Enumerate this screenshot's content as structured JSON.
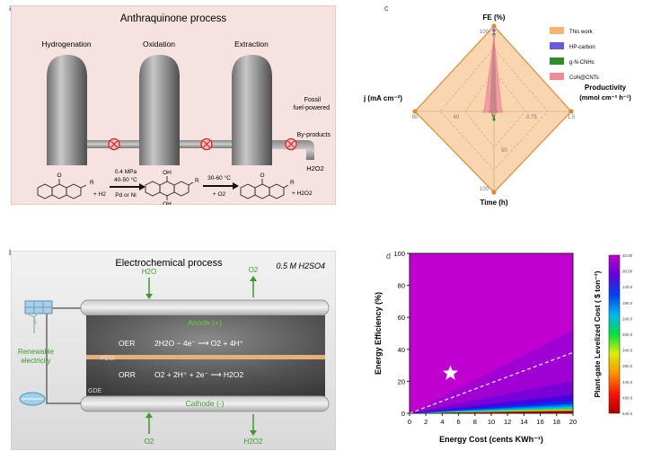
{
  "panel_a": {
    "label": "a",
    "title": "Anthraquinone process",
    "tanks": [
      "Hydrogenation",
      "Oxidation",
      "Extraction"
    ],
    "fossil_note_line1": "Fossil",
    "fossil_note_line2": "fuel-powered",
    "byproducts": "By-products",
    "product": "H2O2",
    "step1_line1": "0.4 MPa",
    "step1_line2": "40-50 °C",
    "step1_line3": "Pd or Ni",
    "step1_reagent": "+ H2",
    "step2_line1": "30-60 °C",
    "step2_line2": "+ O2",
    "step3_reagent": "+ H2O2",
    "r_group": "R",
    "oh": "OH",
    "o": "O"
  },
  "panel_b": {
    "label": "b",
    "title": "Electrochemical process",
    "electrolyte": "0.5 M H2SO4",
    "top_in": "H2O",
    "top_out": "O2",
    "anode": "Anode (+)",
    "oer_label": "OER",
    "oer_eq": "2H2O − 4e⁻ ⟶ O2 + 4H⁺",
    "pem": "PEM",
    "orr_label": "ORR",
    "orr_eq": "O2 + 2H⁺ + 2e⁻ ⟶ H2O2",
    "gde": "GDE",
    "cathode": "Cathode (-)",
    "bottom_in": "O2",
    "bottom_out": "H2O2",
    "renewable_line1": "Renewable",
    "renewable_line2": "electricity"
  },
  "panel_c": {
    "label": "c",
    "axes": {
      "top": "FE (%)",
      "left": "j (mA cm⁻²)",
      "right_line1": "Productivity",
      "right_line2": "(mmol cm⁻² h⁻¹)",
      "bottom": "Time (h)"
    },
    "ticks": {
      "top": [
        "100"
      ],
      "left": [
        "80",
        "40"
      ],
      "right": [
        "0.75",
        "1.5"
      ],
      "bottom": [
        "50",
        "100"
      ]
    },
    "legend": [
      {
        "name": "This work",
        "color": "#f5b46f"
      },
      {
        "name": "HP-carbon",
        "color": "#6a5ae0"
      },
      {
        "name": "g-N-CNHs",
        "color": "#2e8b2e"
      },
      {
        "name": "CoN@CNTs",
        "color": "#f28a96"
      }
    ]
  },
  "panel_d": {
    "label": "d",
    "xlabel": "Energy Cost (cents KWh⁻¹)",
    "ylabel": "Energy Efficiency  (%)",
    "colorbar_label": "Plant-gate Levelized Cost ( $ ton⁻¹)",
    "xticks": [
      "0",
      "2",
      "4",
      "6",
      "8",
      "10",
      "12",
      "14",
      "16",
      "18",
      "20"
    ],
    "yticks": [
      "0",
      "20",
      "40",
      "60",
      "80",
      "100"
    ],
    "colorbar_ticks": [
      "40.00",
      "90.00",
      "140.0",
      "190.0",
      "240.0",
      "290.0",
      "340.0",
      "390.0",
      "440.0",
      "490.0",
      "540.0"
    ],
    "marker": {
      "x": 5,
      "y": 25
    }
  },
  "chart_data": [
    {
      "type": "radar",
      "axes": [
        "FE (%)",
        "Productivity (mmol cm⁻² h⁻¹)",
        "Time (h)",
        "j (mA cm⁻²)"
      ],
      "axis_max": [
        100,
        1.5,
        100,
        80
      ],
      "series": [
        {
          "name": "This work",
          "values": [
            100,
            1.5,
            100,
            80
          ]
        },
        {
          "name": "HP-carbon",
          "values": [
            95,
            0.05,
            2,
            4
          ]
        },
        {
          "name": "g-N-CNHs",
          "values": [
            90,
            0.03,
            10,
            3
          ]
        },
        {
          "name": "CoN@CNTs",
          "values": [
            88,
            0.15,
            3,
            10
          ]
        }
      ]
    },
    {
      "type": "heatmap",
      "xlabel": "Energy Cost (cents KWh⁻¹)",
      "ylabel": "Energy Efficiency (%)",
      "xlim": [
        0,
        20
      ],
      "ylim": [
        0,
        100
      ],
      "zlabel": "Plant-gate Levelized Cost ($ ton⁻¹)",
      "zlim": [
        40,
        540
      ],
      "marker": {
        "x": 5,
        "y": 25
      }
    }
  ]
}
